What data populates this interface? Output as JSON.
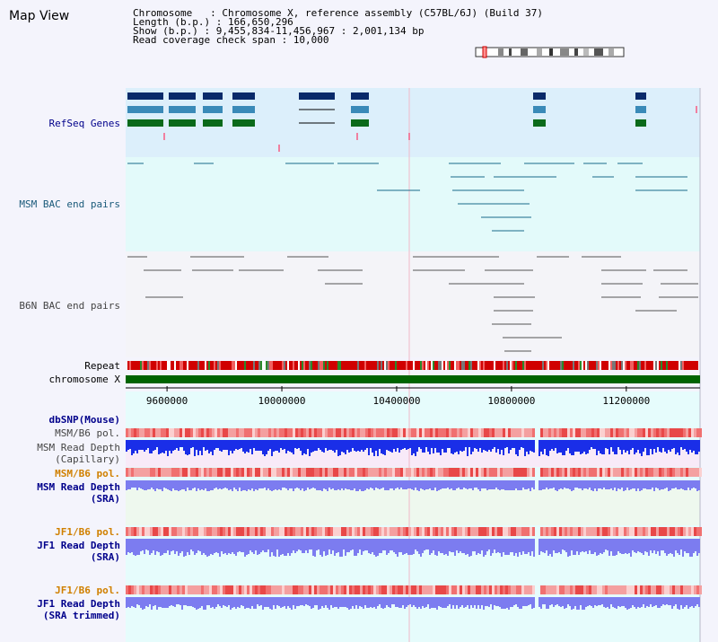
{
  "title": "Map View",
  "info": {
    "chromosome": "Chromosome   : Chromosome X, reference assembly (C57BL/6J) (Build 37)",
    "length": "Length (b.p.) : 166,650,296",
    "show": "Show (b.p.) : 9,455,834-11,456,967 : 2,001,134 bp",
    "coverage": "Read coverage check span : 10,000"
  },
  "labels": {
    "refseq": "RefSeq Genes",
    "msm_bac": "MSM BAC end pairs",
    "b6n_bac": "B6N BAC end pairs",
    "repeat": "Repeat",
    "chromosome": "chromosome X",
    "dbsnp": "dbSNP(Mouse)",
    "msm_b6_pol_1": "MSM/B6 pol.",
    "msm_read_depth_cap_1": "MSM Read Depth",
    "msm_read_depth_cap_2": "(Capillary)",
    "msm_b6_pol_2": "MSM/B6 pol.",
    "msm_read_depth_sra_1": "MSM Read Depth",
    "msm_read_depth_sra_2": "(SRA)",
    "jf1_b6_pol_1": "JF1/B6 pol.",
    "jf1_read_depth_1": "JF1 Read Depth",
    "jf1_read_depth_2": "(SRA)",
    "jf1_b6_pol_2": "JF1/B6 pol.",
    "jf1_read_depth_trim_1": "JF1 Read Depth",
    "jf1_read_depth_trim_2": "(SRA trimmed)"
  },
  "axis": {
    "ticks": [
      {
        "bp": 9600000,
        "label": "9600000"
      },
      {
        "bp": 10000000,
        "label": "10000000"
      },
      {
        "bp": 10400000,
        "label": "10400000"
      },
      {
        "bp": 10800000,
        "label": "10800000"
      },
      {
        "bp": 11200000,
        "label": "11200000"
      }
    ]
  },
  "colors": {
    "refseq_dark": "#0a2a6a",
    "refseq_mid": "#3a8ab8",
    "refseq_green": "#0a6a1a",
    "msm_pairs": "#1a6a8a",
    "b6n_pairs": "#555555",
    "label_blue": "#00008b",
    "label_teal": "#1a5a7a",
    "label_orange": "#d08000",
    "chromosome_bar": "#006400"
  }
}
